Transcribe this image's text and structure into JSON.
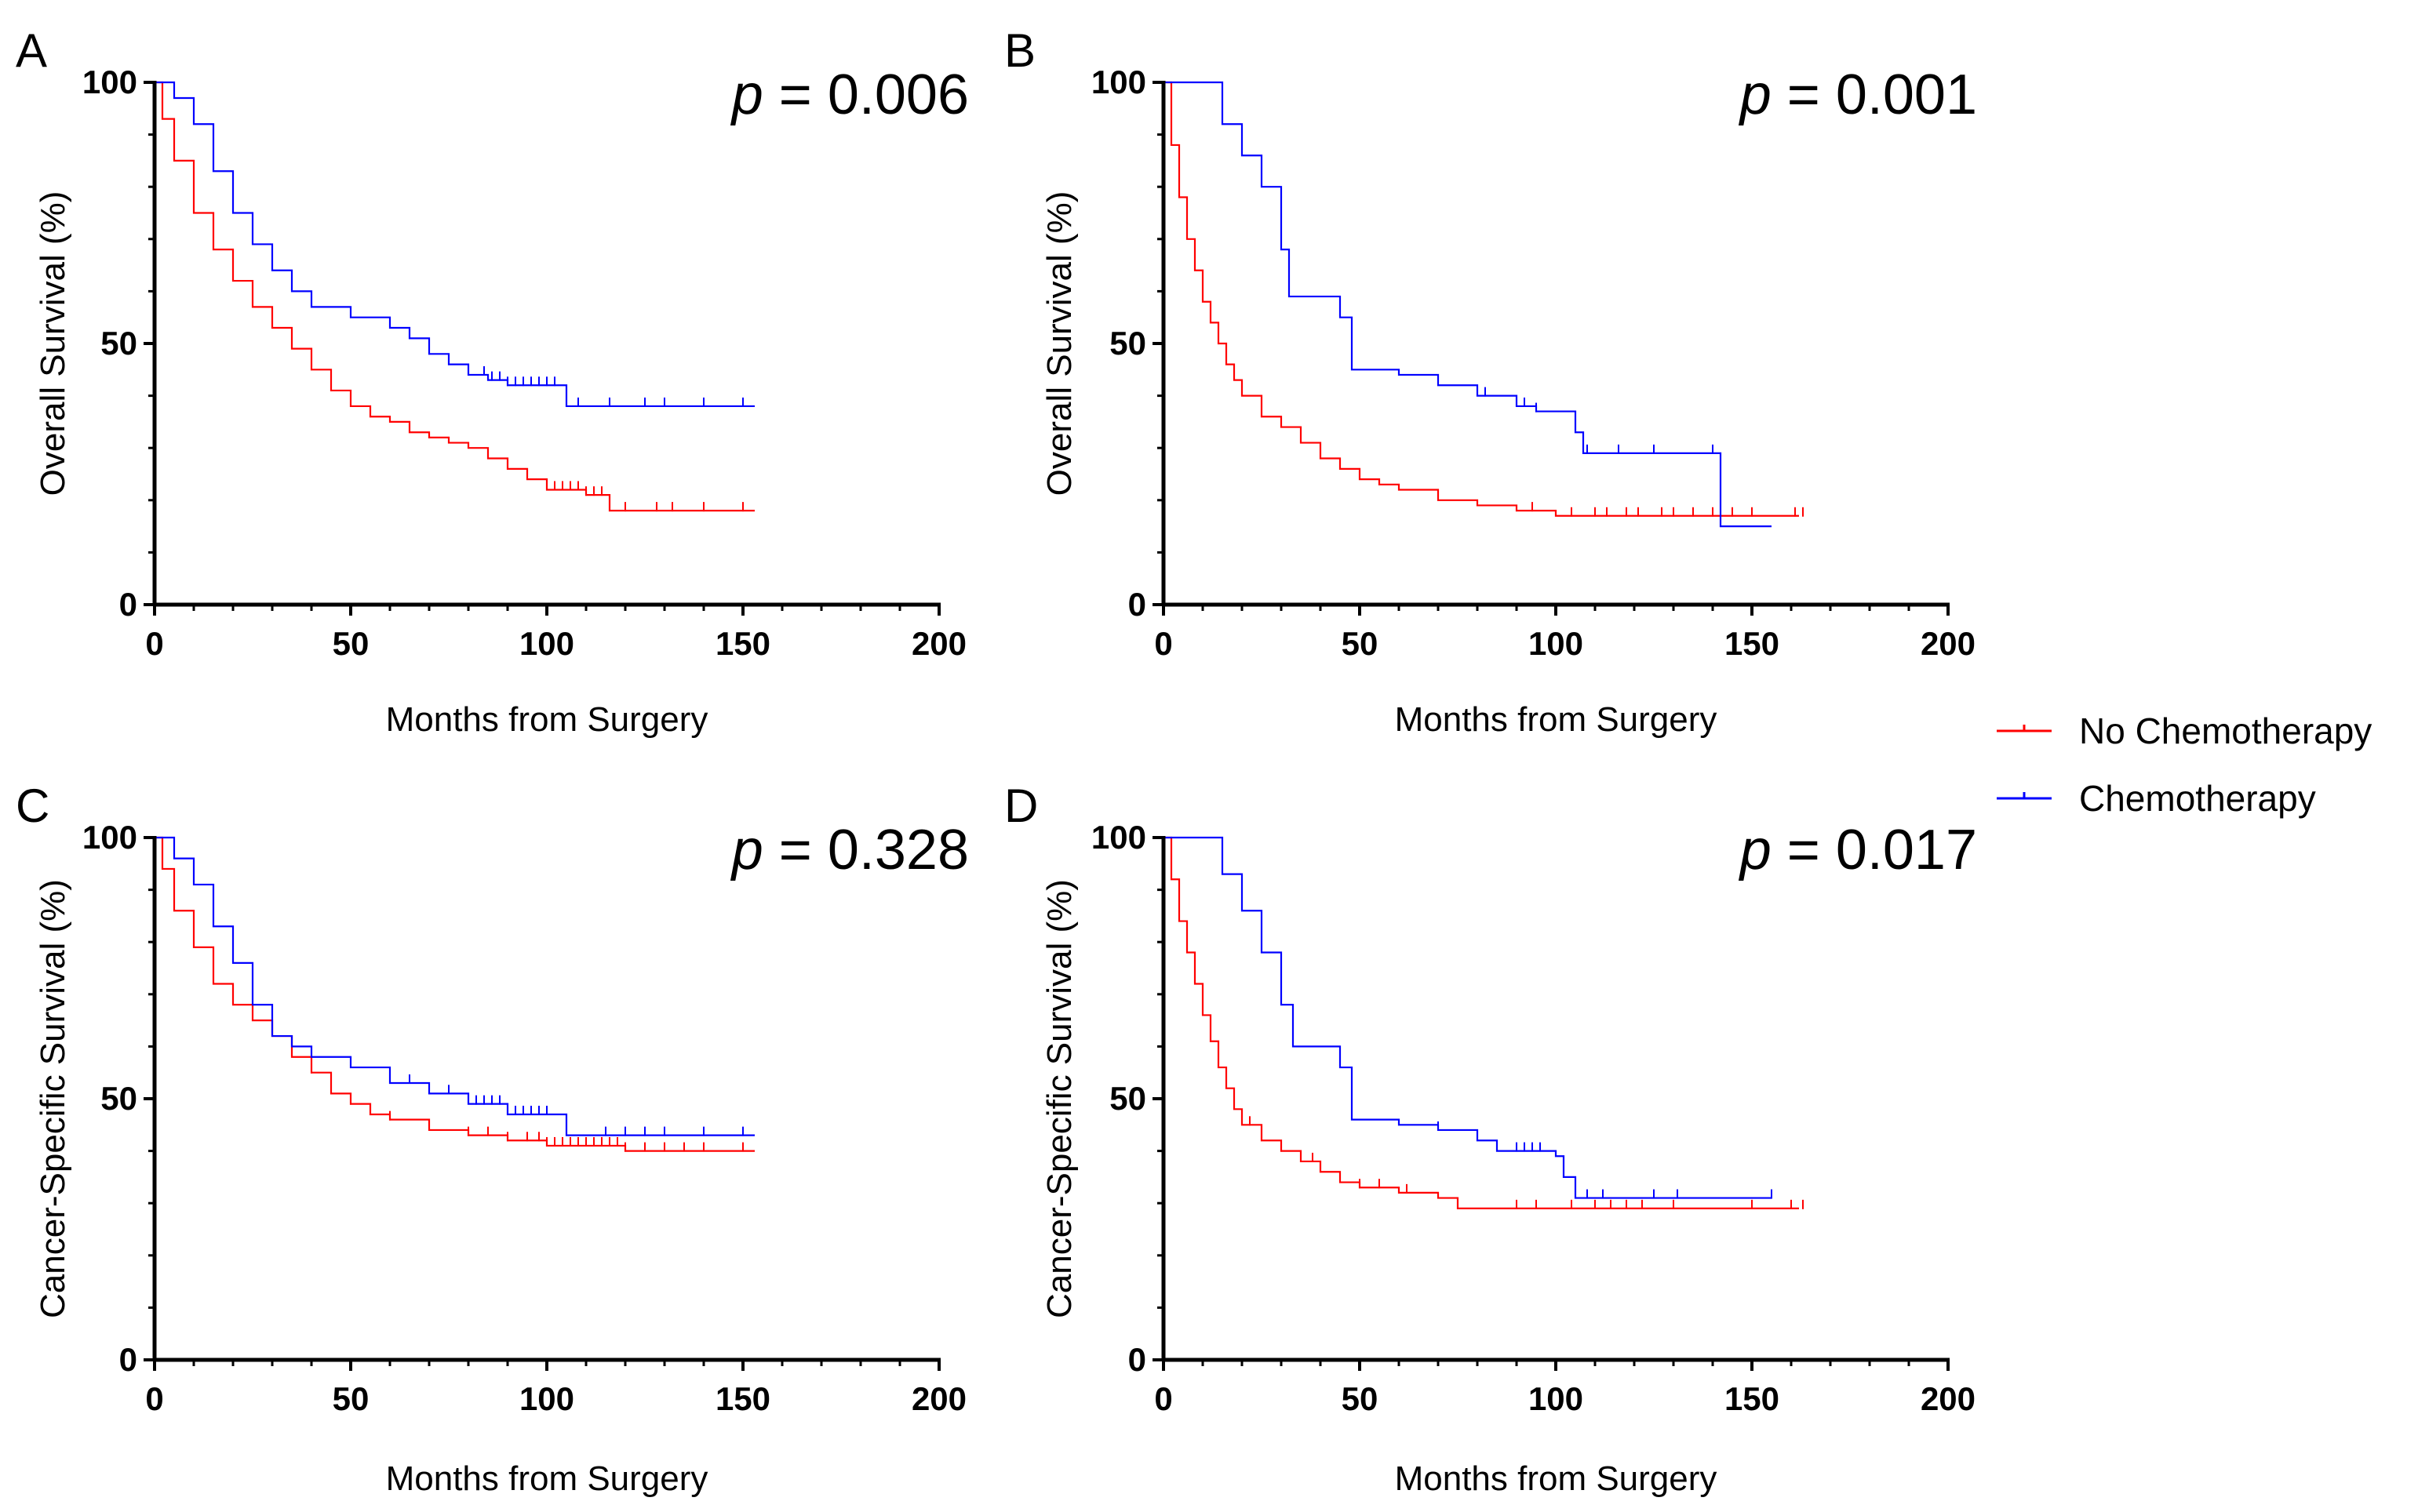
{
  "colors": {
    "no_chemo": "#ff0000",
    "chemo": "#0000ff",
    "axis": "#000000"
  },
  "legend": {
    "entries": [
      {
        "label": "No Chemotherapy",
        "color": "#ff0000"
      },
      {
        "label": "Chemotherapy",
        "color": "#0000ff"
      }
    ],
    "placement": "right"
  },
  "chart_data": [
    {
      "panel": "A",
      "type": "line",
      "title": "",
      "pvalue_prefix": "p",
      "pvalue_text": " = 0.006",
      "xlabel": "Months from Surgery",
      "ylabel": "Overall Survival (%)",
      "xlim": [
        0,
        200
      ],
      "ylim": [
        0,
        100
      ],
      "xticks": [
        "0",
        "50",
        "100",
        "150",
        "200"
      ],
      "yticks": [
        "0",
        "50",
        "100"
      ],
      "series": [
        {
          "name": "No Chemotherapy",
          "x": [
            0,
            2,
            5,
            10,
            15,
            20,
            25,
            30,
            35,
            40,
            45,
            50,
            55,
            60,
            65,
            70,
            75,
            80,
            85,
            90,
            95,
            100,
            105,
            110,
            115,
            116,
            120,
            130,
            140,
            153
          ],
          "y": [
            100,
            93,
            85,
            75,
            68,
            62,
            57,
            53,
            49,
            45,
            41,
            38,
            36,
            35,
            33,
            32,
            31,
            30,
            28,
            26,
            24,
            22,
            22,
            21,
            21,
            18,
            18,
            18,
            18,
            18
          ],
          "censored_x": [
            100,
            102,
            104,
            106,
            108,
            110,
            112,
            114,
            120,
            128,
            132,
            140,
            150
          ]
        },
        {
          "name": "Chemotherapy",
          "x": [
            0,
            3,
            5,
            10,
            15,
            20,
            25,
            30,
            35,
            40,
            50,
            60,
            65,
            70,
            75,
            80,
            85,
            90,
            95,
            100,
            104,
            105,
            110,
            120,
            130,
            153
          ],
          "y": [
            100,
            100,
            97,
            92,
            83,
            75,
            69,
            64,
            60,
            57,
            55,
            53,
            51,
            48,
            46,
            44,
            43,
            42,
            42,
            42,
            42,
            38,
            38,
            38,
            38,
            38
          ],
          "censored_x": [
            84,
            86,
            88,
            90,
            92,
            94,
            96,
            98,
            100,
            102,
            108,
            116,
            125,
            130,
            140,
            150
          ]
        }
      ]
    },
    {
      "panel": "B",
      "type": "line",
      "title": "",
      "pvalue_prefix": "p",
      "pvalue_text": " = 0.001",
      "xlabel": "Months from Surgery",
      "ylabel": "Overall Survival (%)",
      "xlim": [
        0,
        200
      ],
      "ylim": [
        0,
        100
      ],
      "xticks": [
        "0",
        "50",
        "100",
        "150",
        "200"
      ],
      "yticks": [
        "0",
        "50",
        "100"
      ],
      "series": [
        {
          "name": "No Chemotherapy",
          "x": [
            0,
            2,
            4,
            6,
            8,
            10,
            12,
            14,
            16,
            18,
            20,
            25,
            30,
            35,
            40,
            45,
            50,
            55,
            60,
            70,
            80,
            90,
            100,
            110,
            120,
            140,
            162
          ],
          "y": [
            100,
            88,
            78,
            70,
            64,
            58,
            54,
            50,
            46,
            43,
            40,
            36,
            34,
            31,
            28,
            26,
            24,
            23,
            22,
            20,
            19,
            18,
            17,
            17,
            17,
            17,
            17
          ],
          "censored_x": [
            94,
            104,
            110,
            113,
            118,
            121,
            127,
            130,
            135,
            140,
            145,
            150,
            161,
            163
          ]
        },
        {
          "name": "Chemotherapy",
          "x": [
            0,
            10,
            15,
            20,
            25,
            30,
            32,
            35,
            40,
            45,
            48,
            55,
            60,
            70,
            80,
            90,
            95,
            100,
            105,
            107,
            115,
            125,
            140,
            142,
            155
          ],
          "y": [
            100,
            100,
            92,
            86,
            80,
            68,
            59,
            59,
            59,
            55,
            45,
            45,
            44,
            42,
            40,
            38,
            37,
            37,
            33,
            29,
            29,
            29,
            29,
            15,
            15
          ],
          "censored_x": [
            82,
            90,
            92,
            95,
            108,
            116,
            125,
            140
          ]
        }
      ]
    },
    {
      "panel": "C",
      "type": "line",
      "title": "",
      "pvalue_prefix": "p",
      "pvalue_text": " = 0.328",
      "xlabel": "Months from Surgery",
      "ylabel": "Cancer-Specific Survival (%)",
      "xlim": [
        0,
        200
      ],
      "ylim": [
        0,
        100
      ],
      "xticks": [
        "0",
        "50",
        "100",
        "150",
        "200"
      ],
      "yticks": [
        "0",
        "50",
        "100"
      ],
      "series": [
        {
          "name": "No Chemotherapy",
          "x": [
            0,
            2,
            5,
            10,
            15,
            20,
            25,
            30,
            35,
            40,
            45,
            50,
            55,
            60,
            70,
            80,
            90,
            100,
            110,
            120,
            130,
            140,
            153
          ],
          "y": [
            100,
            94,
            86,
            79,
            72,
            68,
            65,
            62,
            58,
            55,
            51,
            49,
            47,
            46,
            44,
            43,
            42,
            41,
            41,
            40,
            40,
            40,
            40
          ],
          "censored_x": [
            40,
            45,
            50,
            60,
            70,
            80,
            85,
            90,
            95,
            98,
            100,
            102,
            104,
            106,
            108,
            110,
            112,
            114,
            116,
            118,
            120,
            125,
            130,
            135,
            140,
            150
          ]
        },
        {
          "name": "Chemotherapy",
          "x": [
            0,
            3,
            5,
            10,
            15,
            20,
            25,
            30,
            35,
            40,
            50,
            60,
            70,
            80,
            90,
            100,
            104,
            105,
            120,
            130,
            153
          ],
          "y": [
            100,
            100,
            96,
            91,
            83,
            76,
            68,
            62,
            60,
            58,
            56,
            53,
            51,
            49,
            47,
            47,
            47,
            43,
            43,
            43,
            43
          ],
          "censored_x": [
            65,
            75,
            82,
            84,
            86,
            88,
            90,
            92,
            94,
            96,
            98,
            100,
            115,
            120,
            125,
            130,
            140,
            150
          ]
        }
      ]
    },
    {
      "panel": "D",
      "type": "line",
      "title": "",
      "pvalue_prefix": "p",
      "pvalue_text": " = 0.017",
      "xlabel": "Months from Surgery",
      "ylabel": "Cancer-Specific Survival (%)",
      "xlim": [
        0,
        200
      ],
      "ylim": [
        0,
        100
      ],
      "xticks": [
        "0",
        "50",
        "100",
        "150",
        "200"
      ],
      "yticks": [
        "0",
        "50",
        "100"
      ],
      "series": [
        {
          "name": "No Chemotherapy",
          "x": [
            0,
            2,
            4,
            6,
            8,
            10,
            12,
            14,
            16,
            18,
            20,
            25,
            30,
            35,
            40,
            45,
            50,
            60,
            70,
            75,
            80,
            90,
            100,
            120,
            140,
            162
          ],
          "y": [
            100,
            92,
            84,
            78,
            72,
            66,
            61,
            56,
            52,
            48,
            45,
            42,
            40,
            38,
            36,
            34,
            33,
            32,
            31,
            29,
            29,
            29,
            29,
            29,
            29,
            29
          ],
          "censored_x": [
            22,
            30,
            35,
            38,
            50,
            55,
            62,
            75,
            90,
            95,
            104,
            110,
            114,
            118,
            122,
            130,
            150,
            160,
            163
          ]
        },
        {
          "name": "Chemotherapy",
          "x": [
            0,
            10,
            15,
            20,
            25,
            30,
            33,
            40,
            45,
            48,
            55,
            60,
            70,
            80,
            85,
            90,
            100,
            102,
            105,
            110,
            130,
            155
          ],
          "y": [
            100,
            100,
            93,
            86,
            78,
            68,
            60,
            60,
            56,
            46,
            46,
            45,
            44,
            42,
            40,
            40,
            39,
            35,
            31,
            31,
            31,
            31
          ],
          "censored_x": [
            70,
            90,
            92,
            94,
            96,
            108,
            112,
            125,
            131,
            155
          ]
        }
      ]
    }
  ]
}
